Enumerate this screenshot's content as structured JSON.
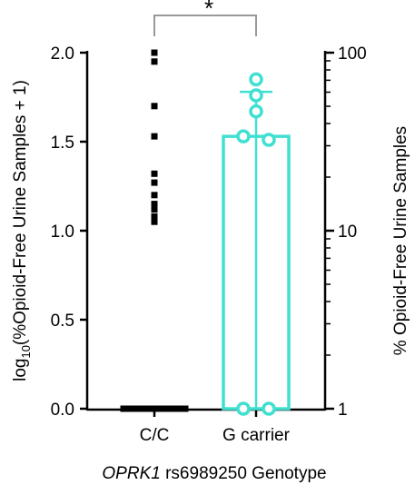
{
  "chart_data": {
    "type": "bar",
    "categories": [
      "C/C",
      "G carrier"
    ],
    "xlabel_italic": "OPRK1",
    "xlabel_rest": " rs6989250 Genotype",
    "ylabel_left": {
      "pre": "log",
      "sub": "10",
      "post": "(%Opioid-Free Urine Samples + 1)"
    },
    "ylabel_right": "% Opioid-Free Urine Samples",
    "ylim": [
      0,
      2.0
    ],
    "yticks_left": [
      "0.0",
      "0.5",
      "1.0",
      "1.5",
      "2.0"
    ],
    "yticks_right": [
      "1",
      "10",
      "100"
    ],
    "significance": "*",
    "colors": {
      "cc": "#000000",
      "g_carrier": "#40e0d0",
      "axis": "#000000",
      "bracket": "#999999"
    },
    "series": [
      {
        "category": "C/C",
        "mean": 0.0,
        "points": [
          2.0,
          1.95,
          1.7,
          1.53,
          1.32,
          1.27,
          1.2,
          1.15,
          1.12,
          1.08,
          1.05,
          0,
          0,
          0,
          0,
          0,
          0,
          0,
          0,
          0,
          0,
          0,
          0,
          0
        ]
      },
      {
        "category": "G carrier",
        "mean": 1.53,
        "error_high": 1.78,
        "error_low": 0.0,
        "points": [
          1.85,
          1.76,
          1.67,
          1.53,
          1.51,
          0,
          0
        ]
      }
    ]
  }
}
